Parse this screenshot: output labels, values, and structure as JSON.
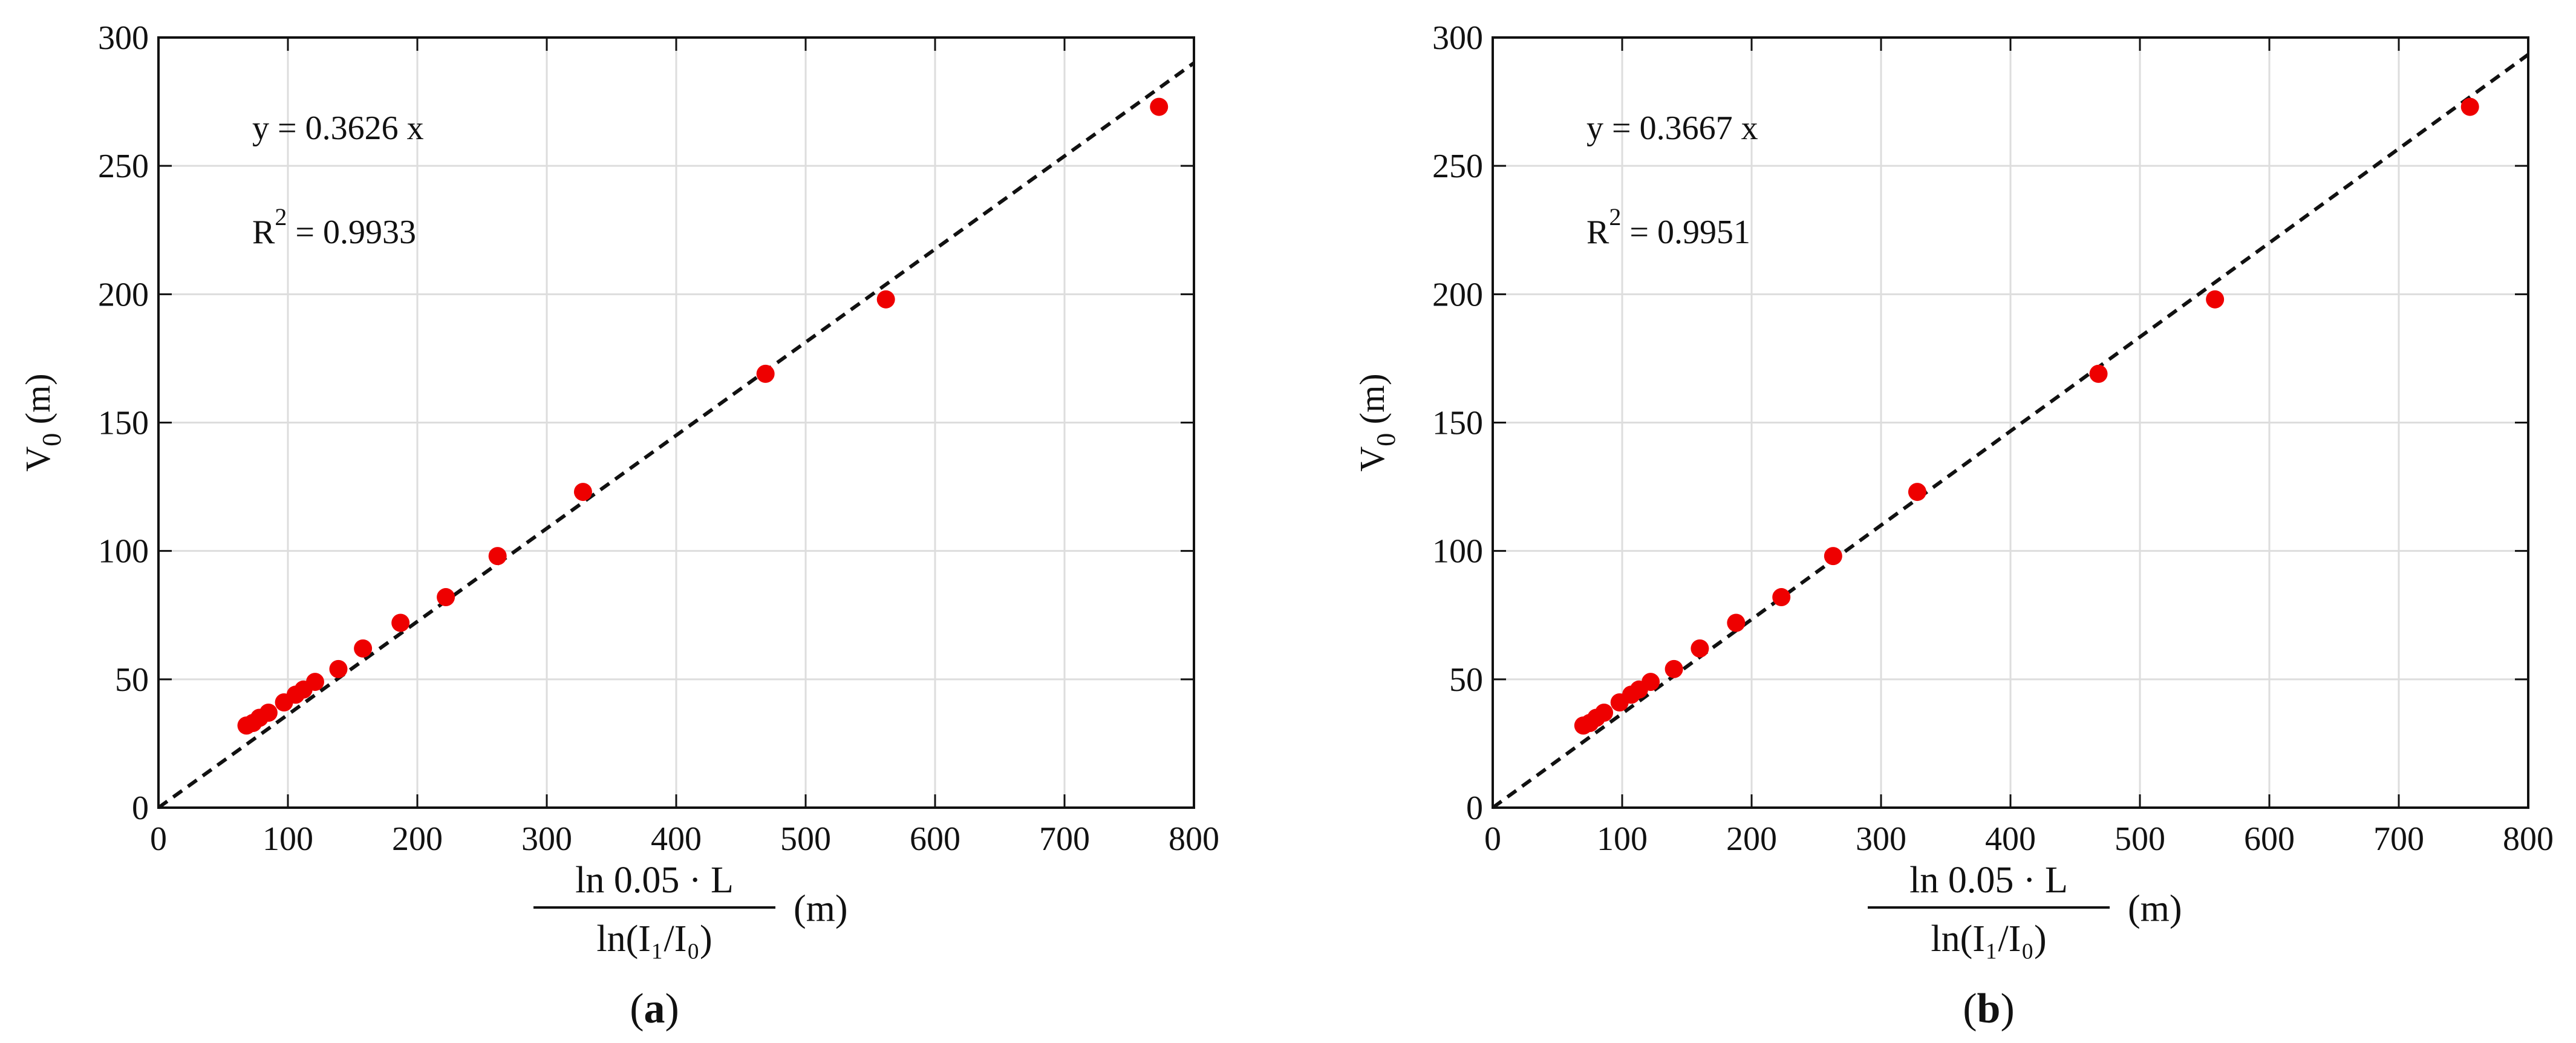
{
  "chart_data": [
    {
      "type": "scatter",
      "panel_label": "(a)",
      "panel_letter": "a",
      "ylabel": "V",
      "ylabel_sub": "0",
      "ylabel_unit": "(m)",
      "xlabel": {
        "numerator": "ln 0.05 · L",
        "denominator": "ln(I₁/I₀)",
        "unit": "(m)"
      },
      "xlim": [
        0,
        800
      ],
      "ylim": [
        0,
        300
      ],
      "xticks": [
        0,
        100,
        200,
        300,
        400,
        500,
        600,
        700,
        800
      ],
      "yticks": [
        0,
        50,
        100,
        150,
        200,
        250,
        300
      ],
      "grid": true,
      "annotations": {
        "equation": "y = 0.3626 x",
        "r2_prefix": "R",
        "r2_sup": "2",
        "r2_value": " = 0.9933"
      },
      "fit_line": {
        "slope": 0.3626,
        "x_range": [
          0,
          800
        ],
        "style": "dashed",
        "color": "#111111"
      },
      "point_color": "#ee0000",
      "series": [
        {
          "x": [
            68,
            73,
            78,
            85,
            97,
            106,
            112,
            121,
            139,
            158,
            187,
            222,
            262,
            328,
            469,
            562,
            773
          ],
          "y": [
            32,
            33,
            35,
            37,
            41,
            44,
            46,
            49,
            54,
            62,
            72,
            82,
            98,
            123,
            169,
            198,
            273
          ]
        }
      ]
    },
    {
      "type": "scatter",
      "panel_label": "(b)",
      "panel_letter": "b",
      "ylabel": "V",
      "ylabel_sub": "0",
      "ylabel_unit": "(m)",
      "xlabel": {
        "numerator": "ln 0.05 · L",
        "denominator": "ln(I₁/I₀)",
        "unit": "(m)"
      },
      "xlim": [
        0,
        800
      ],
      "ylim": [
        0,
        300
      ],
      "xticks": [
        0,
        100,
        200,
        300,
        400,
        500,
        600,
        700,
        800
      ],
      "yticks": [
        0,
        50,
        100,
        150,
        200,
        250,
        300
      ],
      "grid": true,
      "annotations": {
        "equation": "y = 0.3667 x",
        "r2_prefix": "R",
        "r2_sup": "2",
        "r2_value": " = 0.9951"
      },
      "fit_line": {
        "slope": 0.3667,
        "x_range": [
          0,
          800
        ],
        "style": "dashed",
        "color": "#111111"
      },
      "point_color": "#ee0000",
      "series": [
        {
          "x": [
            70,
            75,
            80,
            86,
            98,
            107,
            113,
            122,
            140,
            160,
            188,
            223,
            263,
            328,
            468,
            558,
            755
          ],
          "y": [
            32,
            33,
            35,
            37,
            41,
            44,
            46,
            49,
            54,
            62,
            72,
            82,
            98,
            123,
            169,
            198,
            273
          ]
        }
      ]
    }
  ]
}
